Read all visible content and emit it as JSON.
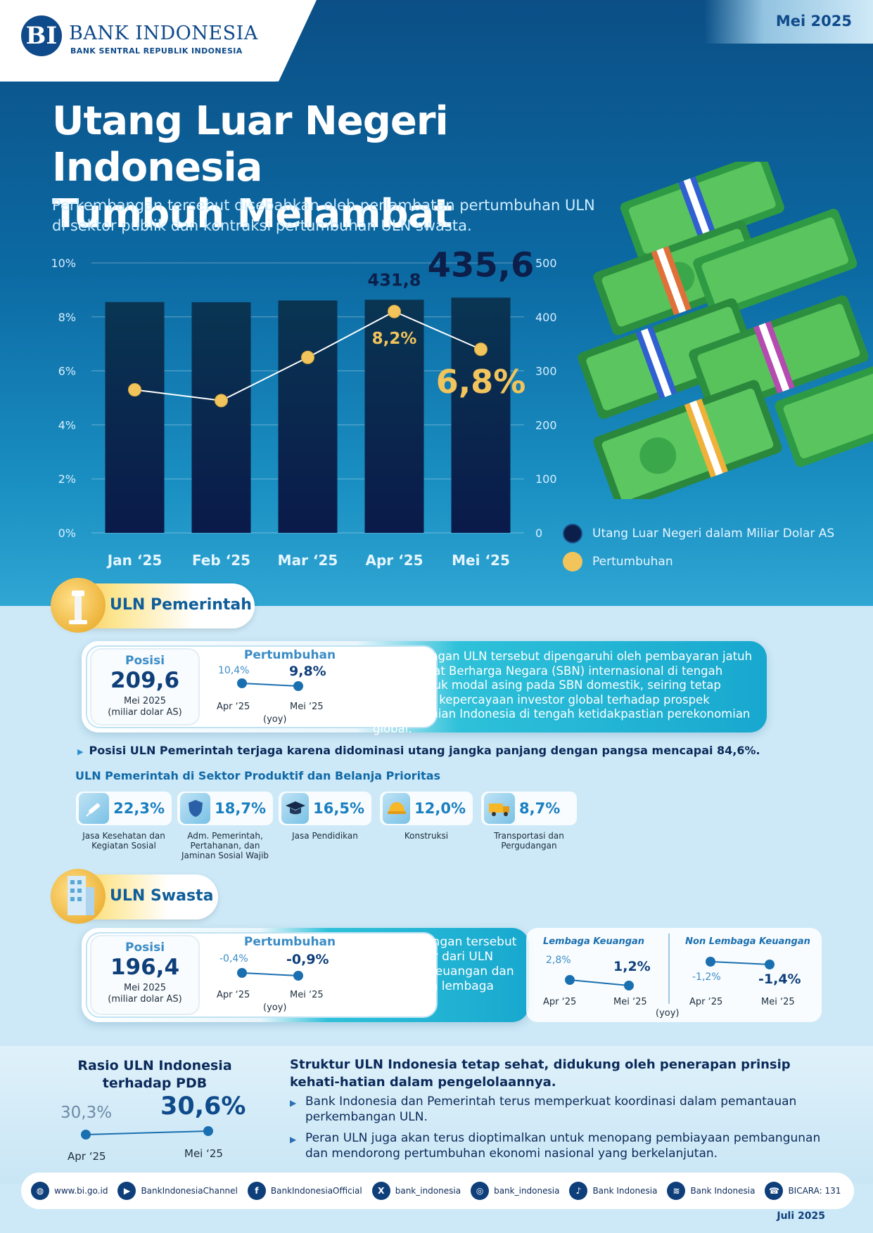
{
  "header": {
    "logo_mark": "BI",
    "org_name": "BANK INDONESIA",
    "org_sub": "BANK SENTRAL REPUBLIK INDONESIA",
    "period": "Mei 2025"
  },
  "title_line1": "Utang Luar Negeri Indonesia",
  "title_line2": "Tumbuh Melambat",
  "subtitle": "Perkembangan tersebut disebabkan oleh perlambatan pertumbuhan ULN di sektor publik dan kontraksi pertumbuhan ULN swasta.",
  "chart_data": {
    "type": "bar",
    "categories": [
      "Jan ‘25",
      "Feb ‘25",
      "Mar ‘25",
      "Apr ‘25",
      "Mei ‘25"
    ],
    "series": [
      {
        "name": "Utang Luar Negeri dalam Miliar Dolar AS",
        "type": "bar",
        "axis": "right",
        "values": [
          427.5,
          427.2,
          430.4,
          431.8,
          435.6
        ],
        "labels": [
          "",
          "",
          "",
          "431,8",
          "435,6"
        ],
        "color": "#0c1f4a"
      },
      {
        "name": "Pertumbuhan",
        "type": "line",
        "axis": "left",
        "values": [
          5.3,
          4.9,
          6.5,
          8.2,
          6.8
        ],
        "labels": [
          "",
          "",
          "",
          "8,2%",
          "6,8%"
        ],
        "color": "#f2c45c"
      }
    ],
    "left_axis": {
      "ticks": [
        "0%",
        "2%",
        "4%",
        "6%",
        "8%",
        "10%"
      ],
      "ylim": [
        0,
        10
      ]
    },
    "right_axis": {
      "ticks": [
        "0",
        "100",
        "200",
        "300",
        "400",
        "500"
      ],
      "ylim": [
        0,
        500
      ]
    },
    "grid": true,
    "legend": "bottom-right"
  },
  "legend": {
    "bar": "Utang Luar Negeri dalam Miliar Dolar AS",
    "line": "Pertumbuhan"
  },
  "pemerintah": {
    "title": "ULN Pemerintah",
    "posisi_label": "Posisi",
    "posisi_value": "209,6",
    "posisi_date": "Mei 2025",
    "posisi_unit": "(miliar dolar AS)",
    "growth_label": "Pertumbuhan",
    "growth_prev": "10,4%",
    "growth_curr": "9,8%",
    "growth_prev_x": "Apr ‘25",
    "growth_curr_x": "Mei ‘25",
    "growth_unit": "(yoy)",
    "description": "Perkembangan ULN tersebut dipengaruhi oleh pembayaran jatuh tempo Surat Berharga Negara (SBN) internasional di tengah aliran masuk modal asing pada SBN domestik, seiring tetap terjaganya kepercayaan investor global terhadap prospek perekonomian Indonesia di tengah ketidakpastian perekonomian global.",
    "bullet": "Posisi ULN Pemerintah terjaga karena didominasi utang jangka panjang dengan pangsa mencapai 84,6%.",
    "sectors_title": "ULN Pemerintah di Sektor Produktif dan Belanja Prioritas",
    "sectors": [
      {
        "value": "22,3%",
        "label": "Jasa Kesehatan dan Kegiatan Sosial",
        "icon": "syringe-icon"
      },
      {
        "value": "18,7%",
        "label": "Adm. Pemerintah, Pertahanan, dan Jaminan Sosial Wajib",
        "icon": "shield-icon"
      },
      {
        "value": "16,5%",
        "label": "Jasa Pendidikan",
        "icon": "graduation-cap-icon"
      },
      {
        "value": "12,0%",
        "label": "Konstruksi",
        "icon": "hard-hat-icon"
      },
      {
        "value": "8,7%",
        "label": "Transportasi dan Pergudangan",
        "icon": "truck-icon"
      }
    ]
  },
  "swasta": {
    "title": "ULN Swasta",
    "posisi_label": "Posisi",
    "posisi_value": "196,4",
    "posisi_date": "Mei 2025",
    "posisi_unit": "(miliar dolar AS)",
    "growth_label": "Pertumbuhan",
    "growth_prev": "-0,4%",
    "growth_curr": "-0,9%",
    "growth_prev_x": "Apr ‘25",
    "growth_curr_x": "Mei ‘25",
    "growth_unit": "(yoy)",
    "description": "Perkembangan tersebut bersumber dari ULN lembaga keuangan dan ULN bukan lembaga keuangan.",
    "lk": {
      "title": "Lembaga Keuangan",
      "prev": "2,8%",
      "curr": "1,2%",
      "prev_x": "Apr ‘25",
      "curr_x": "Mei ‘25"
    },
    "nlk": {
      "title": "Non Lembaga Keuangan",
      "prev": "-1,2%",
      "curr": "-1,4%",
      "prev_x": "Apr ‘25",
      "curr_x": "Mei ‘25"
    },
    "yoy": "(yoy)"
  },
  "rasio": {
    "title": "Rasio ULN Indonesia terhadap PDB",
    "prev": "30,3%",
    "curr": "30,6%",
    "prev_x": "Apr ‘25",
    "curr_x": "Mei ‘25"
  },
  "struktur": {
    "title": "Struktur ULN Indonesia tetap sehat, didukung oleh penerapan prinsip kehati-hatian dalam pengelolaannya.",
    "items": [
      "Bank Indonesia dan Pemerintah terus memperkuat koordinasi dalam pemantauan perkembangan ULN.",
      "Peran ULN juga akan terus dioptimalkan untuk menopang pembiayaan pembangunan dan mendorong pertumbuhan ekonomi nasional yang berkelanjutan."
    ]
  },
  "footer": {
    "links": [
      {
        "text": "www.bi.go.id",
        "icon": "globe-icon"
      },
      {
        "text": "BankIndonesiaChannel",
        "icon": "play-icon"
      },
      {
        "text": "BankIndonesiaOfficial",
        "icon": "facebook-icon"
      },
      {
        "text": "bank_indonesia",
        "icon": "x-icon"
      },
      {
        "text": "bank_indonesia",
        "icon": "instagram-icon"
      },
      {
        "text": "Bank Indonesia",
        "icon": "tiktok-icon"
      },
      {
        "text": "Bank Indonesia",
        "icon": "spotify-icon"
      },
      {
        "text": "BICARA: 131",
        "icon": "call-center-icon"
      }
    ],
    "release": "Juli 2025"
  }
}
